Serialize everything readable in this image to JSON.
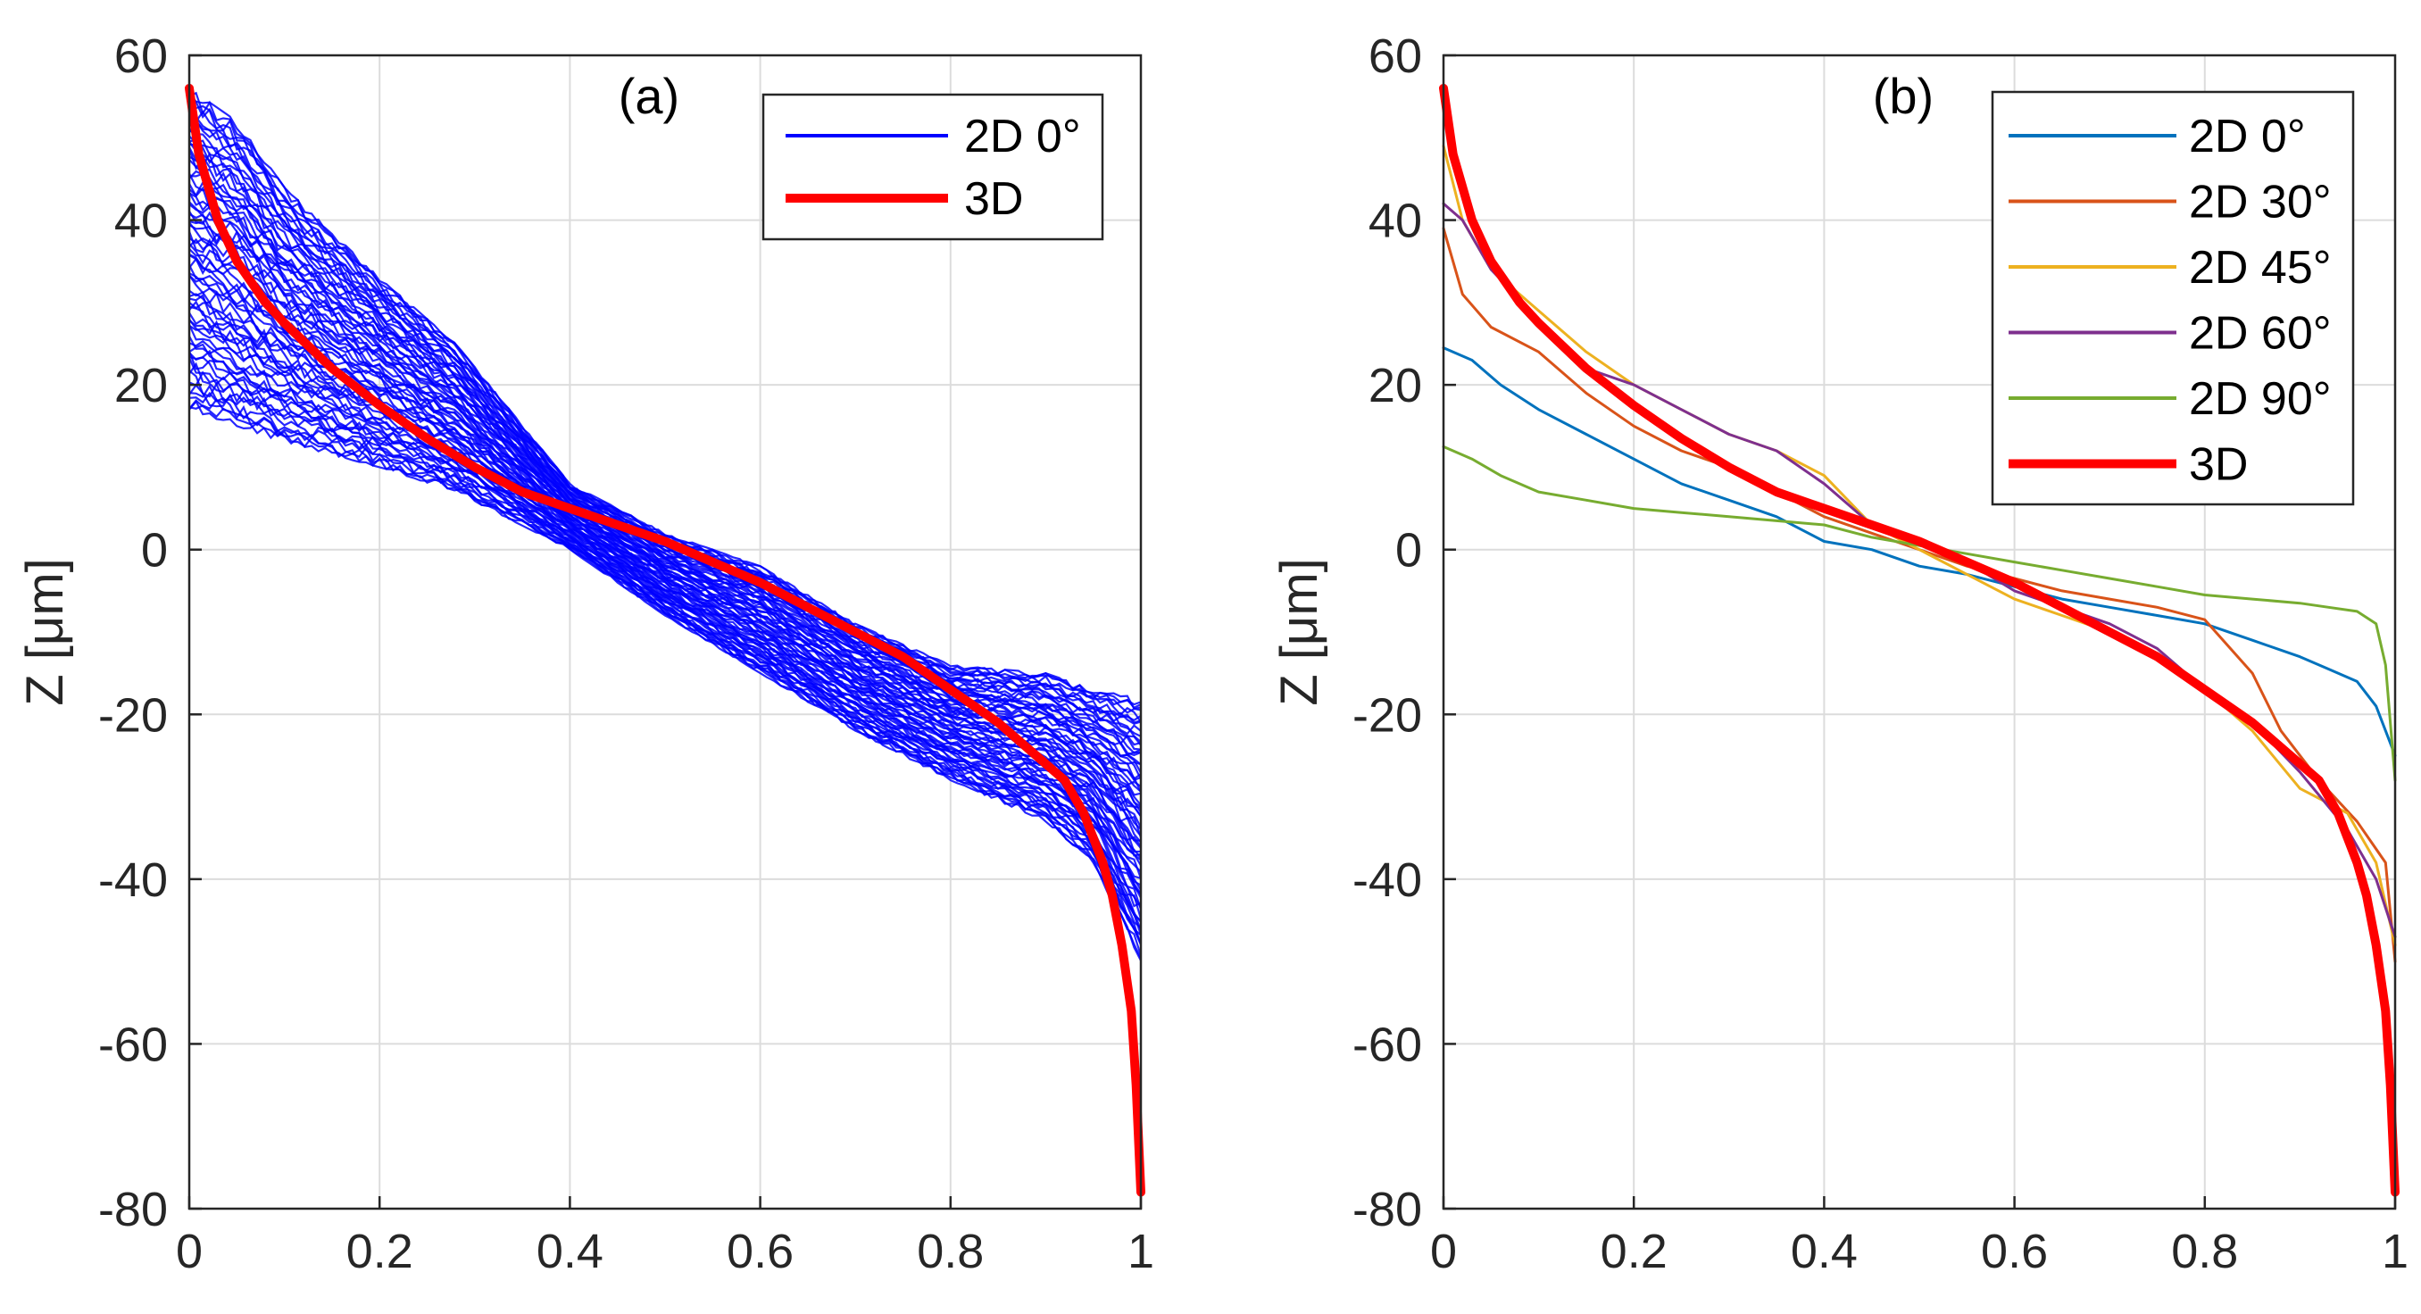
{
  "chart_data": [
    {
      "type": "line",
      "panel_label": "(a)",
      "xlabel": "",
      "ylabel": "Z [μm]",
      "xlim": [
        0,
        1
      ],
      "ylim": [
        -80,
        60
      ],
      "xticks": [
        0,
        0.2,
        0.4,
        0.6,
        0.8,
        1
      ],
      "xtick_labels": [
        "0",
        "0.2",
        "0.4",
        "0.6",
        "0.8",
        "1"
      ],
      "yticks": [
        60,
        40,
        20,
        0,
        -20,
        -40,
        -60,
        -80
      ],
      "ytick_labels": [
        "60",
        "40",
        "20",
        "0",
        "-20",
        "-40",
        "-60",
        "-80"
      ],
      "grid": true,
      "legend_position": "top-right",
      "series": [
        {
          "name": "2D 0°",
          "color": "#0000ff",
          "band": {
            "x": [
              0,
              0.05,
              0.1,
              0.2,
              0.28,
              0.4,
              0.5,
              0.6,
              0.7,
              0.8,
              0.9,
              0.95,
              1.0
            ],
            "upper": [
              56,
              52,
              44,
              33,
              25,
              8,
              2,
              -2,
              -9,
              -14,
              -15,
              -17,
              -18
            ],
            "lower": [
              17,
              15,
              13,
              10,
              7,
              0,
              -8,
              -15,
              -22,
              -28,
              -33,
              -38,
              -50
            ]
          }
        },
        {
          "name": "3D",
          "color": "#ff0000",
          "x": [
            0,
            0.01,
            0.03,
            0.05,
            0.08,
            0.1,
            0.15,
            0.2,
            0.25,
            0.3,
            0.35,
            0.4,
            0.45,
            0.5,
            0.55,
            0.6,
            0.65,
            0.7,
            0.75,
            0.8,
            0.85,
            0.9,
            0.92,
            0.94,
            0.96,
            0.97,
            0.98,
            0.985,
            0.99,
            0.995,
            1.0
          ],
          "values": [
            56,
            48,
            40,
            35,
            30,
            27.5,
            22,
            17.5,
            13.5,
            10,
            7,
            5,
            3,
            1,
            -1.5,
            -4,
            -7,
            -10,
            -13,
            -17,
            -21,
            -26,
            -28,
            -32,
            -38,
            -42,
            -48,
            -52,
            -56,
            -65,
            -78
          ]
        }
      ]
    },
    {
      "type": "line",
      "panel_label": "(b)",
      "xlabel": "",
      "ylabel": "Z [μm]",
      "xlim": [
        0,
        1
      ],
      "ylim": [
        -80,
        60
      ],
      "xticks": [
        0,
        0.2,
        0.4,
        0.6,
        0.8,
        1
      ],
      "xtick_labels": [
        "0",
        "0.2",
        "0.4",
        "0.6",
        "0.8",
        "1"
      ],
      "yticks": [
        60,
        40,
        20,
        0,
        -20,
        -40,
        -60,
        -80
      ],
      "ytick_labels": [
        "60",
        "40",
        "20",
        "0",
        "-20",
        "-40",
        "-60",
        "-80"
      ],
      "grid": true,
      "legend_position": "top-right",
      "series": [
        {
          "name": "2D 0°",
          "color": "#0072bd",
          "x": [
            0,
            0.03,
            0.06,
            0.1,
            0.15,
            0.2,
            0.25,
            0.3,
            0.35,
            0.4,
            0.45,
            0.5,
            0.55,
            0.6,
            0.65,
            0.7,
            0.75,
            0.8,
            0.85,
            0.9,
            0.93,
            0.96,
            0.98,
            1.0
          ],
          "values": [
            24.5,
            23,
            20,
            17,
            14,
            11,
            8,
            6,
            4,
            1,
            0,
            -2,
            -3,
            -4.5,
            -6,
            -7,
            -8,
            -9,
            -11,
            -13,
            -14.5,
            -16,
            -19,
            -25
          ]
        },
        {
          "name": "2D 30°",
          "color": "#d95319",
          "x": [
            0,
            0.02,
            0.05,
            0.1,
            0.15,
            0.2,
            0.25,
            0.3,
            0.35,
            0.4,
            0.45,
            0.5,
            0.55,
            0.6,
            0.65,
            0.7,
            0.75,
            0.8,
            0.85,
            0.88,
            0.92,
            0.96,
            0.99,
            1.0
          ],
          "values": [
            39,
            31,
            27,
            24,
            19,
            15,
            12,
            10,
            7,
            4,
            2,
            0,
            -2,
            -3.5,
            -5,
            -6,
            -7,
            -8.5,
            -15,
            -22,
            -28,
            -33,
            -38,
            -50
          ]
        },
        {
          "name": "2D 45°",
          "color": "#edb120",
          "x": [
            0,
            0.02,
            0.05,
            0.1,
            0.15,
            0.2,
            0.25,
            0.3,
            0.35,
            0.4,
            0.45,
            0.5,
            0.55,
            0.6,
            0.65,
            0.7,
            0.75,
            0.8,
            0.85,
            0.9,
            0.95,
            0.98,
            1.0
          ],
          "values": [
            49,
            40,
            34,
            29,
            24,
            20,
            17,
            14,
            12,
            9,
            3,
            0,
            -3,
            -6,
            -8,
            -10,
            -13,
            -17,
            -22,
            -29,
            -32,
            -38,
            -48
          ]
        },
        {
          "name": "2D 60°",
          "color": "#7e2f8e",
          "x": [
            0,
            0.02,
            0.05,
            0.1,
            0.15,
            0.2,
            0.25,
            0.3,
            0.35,
            0.4,
            0.45,
            0.5,
            0.55,
            0.6,
            0.65,
            0.7,
            0.75,
            0.8,
            0.85,
            0.9,
            0.95,
            0.98,
            1.0
          ],
          "values": [
            42,
            40,
            34,
            28,
            22,
            20,
            17,
            14,
            12,
            8,
            3,
            1,
            -1.5,
            -5,
            -7,
            -9,
            -12,
            -17,
            -21,
            -27,
            -34,
            -40,
            -47
          ]
        },
        {
          "name": "2D 90°",
          "color": "#77ac30",
          "x": [
            0,
            0.03,
            0.06,
            0.1,
            0.15,
            0.2,
            0.25,
            0.3,
            0.35,
            0.4,
            0.45,
            0.5,
            0.55,
            0.6,
            0.65,
            0.7,
            0.75,
            0.8,
            0.85,
            0.9,
            0.93,
            0.96,
            0.98,
            0.99,
            1.0
          ],
          "values": [
            12.5,
            11,
            9,
            7,
            6,
            5,
            4.5,
            4,
            3.5,
            3,
            1.5,
            0.5,
            -0.5,
            -1.5,
            -2.5,
            -3.5,
            -4.5,
            -5.5,
            -6,
            -6.5,
            -7,
            -7.5,
            -9,
            -14,
            -28
          ]
        },
        {
          "name": "3D",
          "color": "#ff0000",
          "x": [
            0,
            0.01,
            0.03,
            0.05,
            0.08,
            0.1,
            0.15,
            0.2,
            0.25,
            0.3,
            0.35,
            0.4,
            0.45,
            0.5,
            0.55,
            0.6,
            0.65,
            0.7,
            0.75,
            0.8,
            0.85,
            0.9,
            0.92,
            0.94,
            0.96,
            0.97,
            0.98,
            0.985,
            0.99,
            0.995,
            1.0
          ],
          "values": [
            56,
            48,
            40,
            35,
            30,
            27.5,
            22,
            17.5,
            13.5,
            10,
            7,
            5,
            3,
            1,
            -1.5,
            -4,
            -7,
            -10,
            -13,
            -17,
            -21,
            -26,
            -28,
            -32,
            -38,
            -42,
            -48,
            -52,
            -56,
            -65,
            -78
          ]
        }
      ]
    }
  ]
}
